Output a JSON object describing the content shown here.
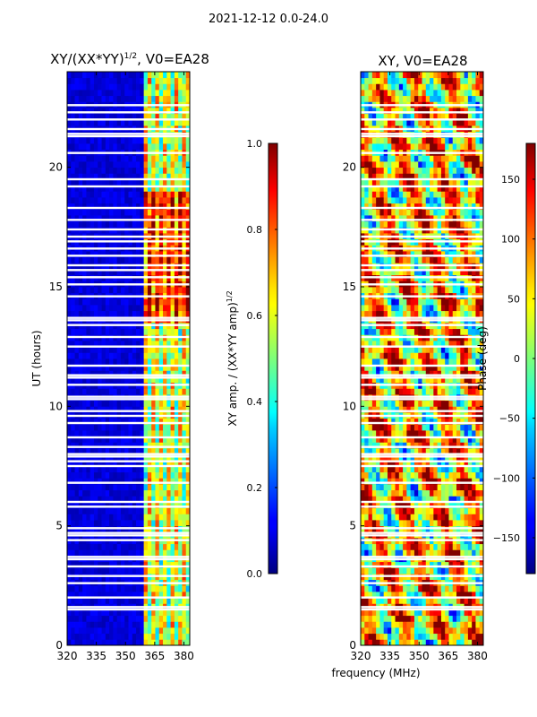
{
  "figure": {
    "suptitle": "2021-12-12 0.0-24.0",
    "shared_xlabel": "frequency (MHz)"
  },
  "chart_data": [
    {
      "type": "heatmap",
      "title": "XY/(XX*YY)^1/2, V0=EA28",
      "title_main": "XY/(XX*YY)",
      "title_exp": "1/2",
      "title_tail": ", V0=EA28",
      "xlabel": "frequency (MHz)",
      "ylabel": "UT (hours)",
      "xlim": [
        320,
        383
      ],
      "ylim": [
        0,
        24
      ],
      "xticks": [
        "320",
        "335",
        "350",
        "365",
        "380"
      ],
      "xtick_values": [
        320,
        335,
        350,
        365,
        380
      ],
      "yticks": [
        "0",
        "5",
        "10",
        "15",
        "20"
      ],
      "ytick_values": [
        0,
        5,
        10,
        15,
        20
      ],
      "colormap": "jet",
      "colorbar": {
        "label": "XY amp. / (XX*YY amp)^1/2",
        "label_main": "XY amp. / (XX*YY amp)",
        "label_exp": "1/2",
        "range": [
          0.0,
          1.0
        ],
        "ticks": [
          "0.0",
          "0.2",
          "0.4",
          "0.6",
          "0.8",
          "1.0"
        ],
        "tick_values": [
          0.0,
          0.2,
          0.4,
          0.6,
          0.8,
          1.0
        ]
      },
      "signal_band_mhz": [
        360,
        382
      ],
      "flagged_time_rows_hours": [
        1.5,
        1.6,
        2.0,
        2.6,
        2.9,
        3.3,
        3.6,
        3.7,
        4.4,
        4.6,
        4.7,
        4.9,
        5.8,
        6.0,
        6.8,
        7.5,
        7.7,
        7.9,
        8.0,
        8.3,
        8.7,
        9.3,
        9.6,
        9.8,
        10.3,
        10.4,
        10.9,
        11.2,
        11.3,
        11.7,
        12.5,
        12.9,
        13.4,
        13.6,
        13.7,
        14.6,
        15.1,
        15.4,
        15.7,
        15.9,
        16.3,
        16.6,
        16.9,
        17.1,
        17.4,
        17.8,
        18.3,
        19.2,
        19.5,
        20.6,
        21.3,
        21.4,
        21.6,
        22.0,
        22.3,
        22.6
      ]
    },
    {
      "type": "heatmap",
      "title": "XY, V0=EA28",
      "xlabel": "frequency (MHz)",
      "ylabel": "",
      "xlim": [
        320,
        383
      ],
      "ylim": [
        0,
        24
      ],
      "xticks": [
        "320",
        "335",
        "350",
        "365",
        "380"
      ],
      "xtick_values": [
        320,
        335,
        350,
        365,
        380
      ],
      "yticks": [
        "0",
        "5",
        "10",
        "15",
        "20"
      ],
      "ytick_values": [
        0,
        5,
        10,
        15,
        20
      ],
      "colormap": "jet",
      "colorbar": {
        "label": "Phase (deg)",
        "range": [
          -180,
          180
        ],
        "ticks": [
          "−150",
          "−100",
          "−50",
          "0",
          "50",
          "100",
          "150"
        ],
        "tick_values": [
          -150,
          -100,
          -50,
          0,
          50,
          100,
          150
        ]
      },
      "flagged_time_rows_hours": [
        1.5,
        1.6,
        2.0,
        2.6,
        2.9,
        3.3,
        3.6,
        3.7,
        4.4,
        4.6,
        4.7,
        4.9,
        5.8,
        6.0,
        6.8,
        7.5,
        7.7,
        7.9,
        8.0,
        8.3,
        8.7,
        9.3,
        9.6,
        9.8,
        10.3,
        10.4,
        10.9,
        11.2,
        11.3,
        11.7,
        12.5,
        12.9,
        13.4,
        13.6,
        13.7,
        14.6,
        15.1,
        15.4,
        15.7,
        15.9,
        16.3,
        16.6,
        16.9,
        17.1,
        17.4,
        17.8,
        18.3,
        19.2,
        19.5,
        20.6,
        21.3,
        21.4,
        21.6,
        22.0,
        22.3,
        22.6
      ]
    }
  ]
}
